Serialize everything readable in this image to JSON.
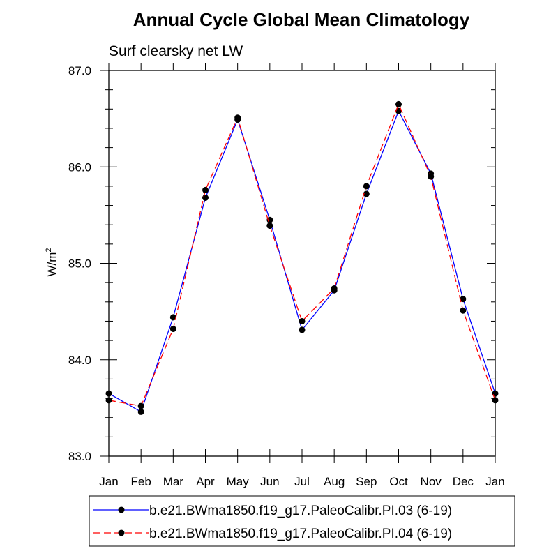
{
  "chart_data": {
    "type": "line",
    "title": "Annual Cycle Global Mean Climatology",
    "subtitle": "Surf clearsky net LW",
    "ylabel": "W/m",
    "ylabel_sup": "2",
    "xlabel": "",
    "ylim": [
      83.0,
      87.0
    ],
    "yticks": [
      "83.0",
      "84.0",
      "85.0",
      "86.0",
      "87.0"
    ],
    "categories": [
      "Jan",
      "Feb",
      "Mar",
      "Apr",
      "May",
      "Jun",
      "Jul",
      "Aug",
      "Sep",
      "Oct",
      "Nov",
      "Dec",
      "Jan"
    ],
    "series": [
      {
        "name": "b.e21.BWma1850.f19_g17.PaleoCalibr.PI.03 (6-19)",
        "color": "#0000ff",
        "dash": "solid",
        "values": [
          83.65,
          83.46,
          84.44,
          85.68,
          86.49,
          85.45,
          84.31,
          84.72,
          85.72,
          86.58,
          85.93,
          84.63,
          83.65
        ]
      },
      {
        "name": "b.e21.BWma1850.f19_g17.PaleoCalibr.PI.04 (6-19)",
        "color": "#ff0000",
        "dash": "dashed",
        "values": [
          83.58,
          83.52,
          84.32,
          85.76,
          86.51,
          85.39,
          84.4,
          84.74,
          85.8,
          86.65,
          85.9,
          84.51,
          83.58
        ]
      }
    ],
    "legend_position": "bottom"
  }
}
